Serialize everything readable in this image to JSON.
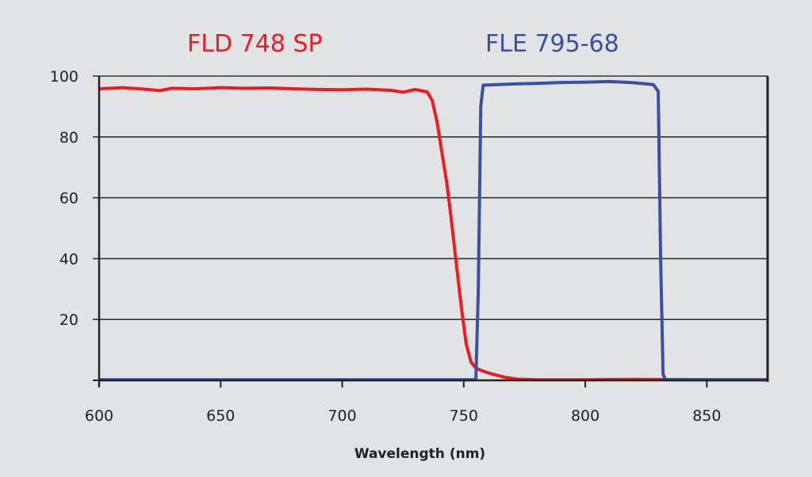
{
  "chart_data": {
    "type": "line",
    "title": "",
    "xlabel": "Wavelength (nm)",
    "ylabel": "",
    "xlim": [
      600,
      875
    ],
    "ylim": [
      0,
      100
    ],
    "xticks": [
      600,
      650,
      700,
      750,
      800,
      850
    ],
    "yticks": [
      20,
      40,
      60,
      80,
      100
    ],
    "grid": "horizontal",
    "series": [
      {
        "name": "FLD 748 SP",
        "color": "#ed1c24",
        "x": [
          600,
          610,
          620,
          625,
          630,
          640,
          650,
          660,
          670,
          680,
          690,
          700,
          710,
          720,
          725,
          730,
          735,
          737,
          739,
          741,
          743,
          745,
          747,
          749,
          751,
          753,
          755,
          758,
          762,
          767,
          772,
          780,
          800,
          820,
          850,
          875
        ],
        "y": [
          95.8,
          96.2,
          95.6,
          95.2,
          96,
          95.8,
          96.2,
          96,
          96.1,
          95.8,
          95.6,
          95.5,
          95.7,
          95.3,
          94.7,
          95.6,
          94.8,
          92,
          85,
          75,
          65,
          52,
          38,
          24,
          12,
          6,
          4,
          3,
          2,
          1,
          0.4,
          0.2,
          0.2,
          0.3,
          0.2,
          0.2
        ]
      },
      {
        "name": "FLE 795-68",
        "color": "#3b4fa3",
        "x": [
          600,
          700,
          755,
          756,
          757,
          758,
          770,
          780,
          790,
          800,
          810,
          820,
          828,
          830,
          831,
          832,
          833,
          850,
          875
        ],
        "y": [
          0.2,
          0.2,
          0.2,
          30,
          90,
          97,
          97.4,
          97.6,
          97.9,
          98,
          98.2,
          97.8,
          97.2,
          95,
          40,
          2,
          0.2,
          0.2,
          0.2
        ]
      }
    ]
  }
}
